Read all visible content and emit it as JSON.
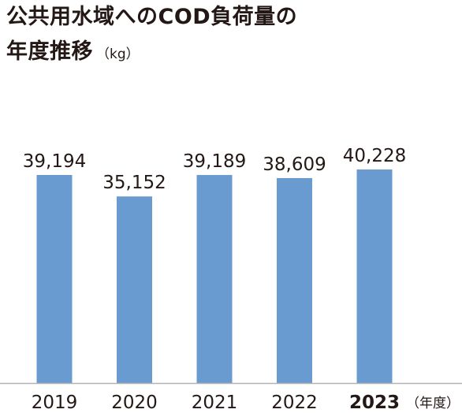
{
  "title_line1": "公共用水域へのCOD負荷量の",
  "title_line2": "年度推移",
  "unit": "（kg）",
  "chart_data": {
    "type": "bar",
    "title": "公共用水域へのCOD負荷量の年度推移",
    "categories": [
      "2019",
      "2020",
      "2021",
      "2022",
      "2023"
    ],
    "highlight_category": "2023",
    "values": [
      39194,
      35152,
      39189,
      38609,
      40228
    ],
    "value_labels": [
      "39,194",
      "35,152",
      "39,189",
      "38,609",
      "40,228"
    ],
    "ylabel": "（kg）",
    "xlabel": "（年度）",
    "ylim": [
      0,
      50000
    ],
    "grid": false,
    "bar_color": "#6a9bd0",
    "axis_color": "#b3b3b3",
    "text_color": "#231815"
  }
}
